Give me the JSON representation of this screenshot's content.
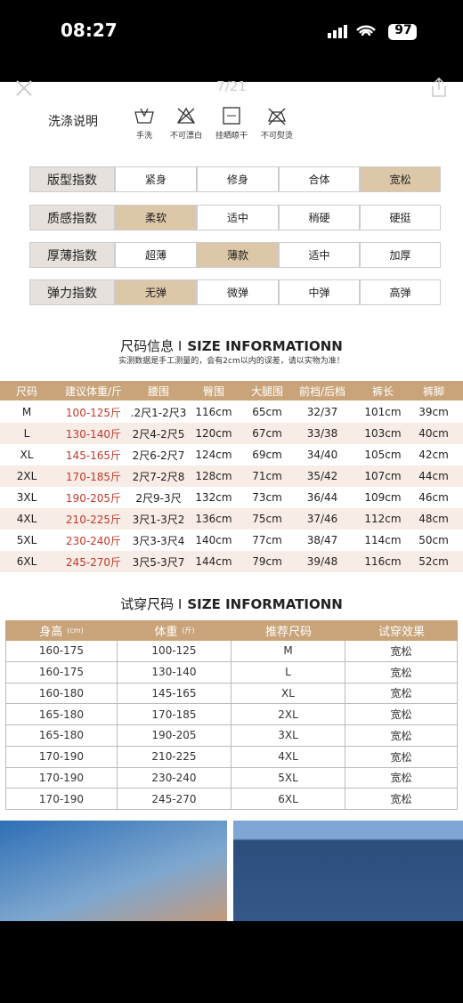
{
  "status": {
    "time": "08:27",
    "battery": "97"
  },
  "header": {
    "page_counter": "7/21"
  },
  "care": {
    "title": "洗涤说明",
    "items": [
      "手洗",
      "不可漂白",
      "挂晒晾干",
      "不可熨烫"
    ]
  },
  "indices": [
    {
      "label": "版型指数",
      "options": [
        "紧身",
        "修身",
        "合体",
        "宽松"
      ],
      "selected": 3
    },
    {
      "label": "质感指数",
      "options": [
        "柔软",
        "适中",
        "稍硬",
        "硬挺"
      ],
      "selected": 0
    },
    {
      "label": "厚薄指数",
      "options": [
        "超薄",
        "薄款",
        "适中",
        "加厚"
      ],
      "selected": 1
    },
    {
      "label": "弹力指数",
      "options": [
        "无弹",
        "微弹",
        "中弹",
        "高弹"
      ],
      "selected": 0
    }
  ],
  "size_info": {
    "title_cn": "尺码信息 I",
    "title_en": "SIZE INFORMATIONN",
    "note": "实测数据是手工测量的，会有2cm以内的误差，请以实物为准！",
    "table": {
      "header": [
        "尺码",
        "建议体重/斤",
        "腰围",
        "臀围",
        "大腿围",
        "前裆/后档",
        "裤长",
        "裤脚"
      ],
      "rows": [
        [
          "M",
          "100-125斤",
          ".2尺1-2尺3",
          "116cm",
          "65cm",
          "32/37",
          "101cm",
          "39cm"
        ],
        [
          "L",
          "130-140斤",
          "2尺4-2尺5",
          "120cm",
          "67cm",
          "33/38",
          "103cm",
          "40cm"
        ],
        [
          "XL",
          "145-165斤",
          "2尺6-2尺7",
          "124cm",
          "69cm",
          "34/40",
          "105cm",
          "42cm"
        ],
        [
          "2XL",
          "170-185斤",
          "2尺7-2尺8",
          "128cm",
          "71cm",
          "35/42",
          "107cm",
          "44cm"
        ],
        [
          "3XL",
          "190-205斤",
          "2尺9-3尺",
          "132cm",
          "73cm",
          "36/44",
          "109cm",
          "46cm"
        ],
        [
          "4XL",
          "210-225斤",
          "3尺1-3尺2",
          "136cm",
          "75cm",
          "37/46",
          "112cm",
          "48cm"
        ],
        [
          "5XL",
          "230-240斤",
          "3尺3-3尺4",
          "140cm",
          "77cm",
          "38/47",
          "114cm",
          "50cm"
        ],
        [
          "6XL",
          "245-270斤",
          "3尺5-3尺7",
          "144cm",
          "79cm",
          "39/48",
          "116cm",
          "52cm"
        ]
      ]
    }
  },
  "fitting": {
    "title_cn": "试穿尺码 I",
    "title_en": "SIZE INFORMATIONN",
    "table": {
      "header": [
        "身高",
        "体重",
        "推荐尺码",
        "试穿效果"
      ],
      "header_units": [
        "(cm)",
        "(斤)",
        null,
        null
      ],
      "rows": [
        [
          "160-175",
          "100-125",
          "M",
          "宽松"
        ],
        [
          "160-175",
          "130-140",
          "L",
          "宽松"
        ],
        [
          "160-180",
          "145-165",
          "XL",
          "宽松"
        ],
        [
          "165-180",
          "170-185",
          "2XL",
          "宽松"
        ],
        [
          "165-180",
          "190-205",
          "3XL",
          "宽松"
        ],
        [
          "170-190",
          "210-225",
          "4XL",
          "宽松"
        ],
        [
          "170-190",
          "230-240",
          "5XL",
          "宽松"
        ],
        [
          "170-190",
          "245-270",
          "6XL",
          "宽松"
        ]
      ]
    }
  }
}
